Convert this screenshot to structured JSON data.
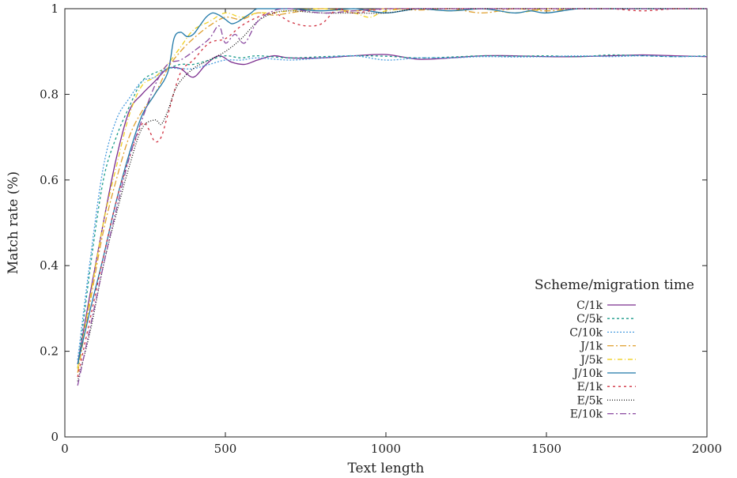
{
  "chart_data": {
    "type": "line",
    "title": "",
    "xlabel": "Text length",
    "ylabel": "Match rate (%)",
    "xlim": [
      0,
      2000
    ],
    "ylim": [
      0,
      1
    ],
    "xticks": [
      0,
      500,
      1000,
      1500,
      2000
    ],
    "yticks": [
      0,
      0.2,
      0.4,
      0.6,
      0.8,
      1
    ],
    "ytick_labels": [
      "0",
      "0.2",
      "0.4",
      "0.6",
      "0.8",
      "1"
    ],
    "grid": false,
    "legend": {
      "title": "Scheme/migration time",
      "position": "right"
    },
    "series": [
      {
        "name": "C/1k",
        "color": "#7b2d8e",
        "dash": "",
        "x": [
          40,
          80,
          120,
          160,
          200,
          240,
          280,
          320,
          360,
          400,
          440,
          480,
          520,
          560,
          600,
          650,
          700,
          800,
          900,
          1000,
          1100,
          1200,
          1300,
          1400,
          1500,
          1600,
          1700,
          1800,
          1900,
          2000
        ],
        "y": [
          0.17,
          0.34,
          0.5,
          0.65,
          0.76,
          0.8,
          0.83,
          0.86,
          0.86,
          0.84,
          0.87,
          0.89,
          0.875,
          0.87,
          0.88,
          0.89,
          0.885,
          0.885,
          0.89,
          0.893,
          0.882,
          0.885,
          0.89,
          0.89,
          0.888,
          0.888,
          0.89,
          0.892,
          0.89,
          0.888
        ]
      },
      {
        "name": "C/5k",
        "color": "#1a9a8a",
        "dash": "3,3",
        "x": [
          40,
          80,
          120,
          160,
          200,
          240,
          280,
          320,
          360,
          400,
          450,
          500,
          550,
          600,
          700,
          800,
          900,
          1000,
          1100,
          1200,
          1300,
          1400,
          1500,
          1600,
          1700,
          1800,
          1900,
          2000
        ],
        "y": [
          0.16,
          0.4,
          0.6,
          0.7,
          0.77,
          0.83,
          0.85,
          0.86,
          0.87,
          0.87,
          0.88,
          0.89,
          0.885,
          0.89,
          0.885,
          0.888,
          0.89,
          0.889,
          0.885,
          0.887,
          0.89,
          0.889,
          0.89,
          0.888,
          0.892,
          0.89,
          0.888,
          0.89
        ]
      },
      {
        "name": "C/10k",
        "color": "#4a9de0",
        "dash": "2,2",
        "x": [
          40,
          80,
          120,
          160,
          200,
          240,
          280,
          320,
          360,
          400,
          450,
          500,
          550,
          600,
          700,
          800,
          900,
          1000,
          1100,
          1200,
          1300,
          1400,
          1500,
          1600,
          1700,
          1800,
          1900,
          2000
        ],
        "y": [
          0.18,
          0.42,
          0.63,
          0.74,
          0.79,
          0.83,
          0.84,
          0.86,
          0.86,
          0.86,
          0.87,
          0.88,
          0.88,
          0.885,
          0.88,
          0.885,
          0.89,
          0.88,
          0.885,
          0.885,
          0.888,
          0.887,
          0.888,
          0.89,
          0.888,
          0.89,
          0.888,
          0.889
        ]
      },
      {
        "name": "J/1k",
        "color": "#e0a030",
        "dash": "8,3,2,3",
        "x": [
          40,
          80,
          120,
          160,
          200,
          240,
          280,
          320,
          360,
          400,
          450,
          500,
          550,
          600,
          650,
          700,
          800,
          900,
          1000,
          1100,
          1200,
          1300,
          1400,
          1500,
          1600,
          1700,
          1800,
          1900,
          2000
        ],
        "y": [
          0.15,
          0.32,
          0.48,
          0.6,
          0.7,
          0.76,
          0.8,
          0.86,
          0.9,
          0.93,
          0.96,
          0.98,
          0.975,
          0.99,
          0.985,
          0.99,
          1.0,
          0.995,
          1.0,
          0.997,
          1.0,
          0.99,
          1.0,
          0.995,
          1.0,
          1.0,
          1.0,
          1.0,
          1.0
        ]
      },
      {
        "name": "J/5k",
        "color": "#f0d020",
        "dash": "6,3,1,3",
        "x": [
          40,
          80,
          120,
          160,
          200,
          240,
          280,
          320,
          360,
          400,
          450,
          500,
          550,
          600,
          650,
          700,
          800,
          900,
          950,
          1000,
          1100,
          1200,
          1300,
          1400,
          1500,
          1600,
          1700,
          1800,
          1900,
          2000
        ],
        "y": [
          0.16,
          0.33,
          0.5,
          0.63,
          0.75,
          0.82,
          0.84,
          0.87,
          0.91,
          0.95,
          0.97,
          0.99,
          0.98,
          0.99,
          0.99,
          0.995,
          1.0,
          0.99,
          0.98,
          0.995,
          1.0,
          0.995,
          1.0,
          0.99,
          1.0,
          1.0,
          1.0,
          1.0,
          1.0,
          1.0
        ]
      },
      {
        "name": "J/10k",
        "color": "#1f78a8",
        "dash": "",
        "x": [
          40,
          80,
          120,
          160,
          200,
          240,
          280,
          320,
          340,
          360,
          380,
          400,
          420,
          440,
          460,
          480,
          500,
          520,
          540,
          560,
          580,
          600,
          650,
          700,
          800,
          900,
          1000,
          1100,
          1200,
          1300,
          1400,
          1450,
          1500,
          1600,
          1700,
          1800,
          1900,
          2000
        ],
        "y": [
          0.17,
          0.3,
          0.42,
          0.55,
          0.66,
          0.75,
          0.8,
          0.85,
          0.93,
          0.945,
          0.935,
          0.94,
          0.96,
          0.98,
          0.99,
          0.985,
          0.975,
          0.965,
          0.97,
          0.98,
          0.99,
          1.0,
          1.0,
          1.0,
          0.995,
          1.0,
          0.99,
          1.0,
          0.995,
          1.0,
          0.99,
          0.995,
          0.99,
          1.0,
          1.0,
          1.0,
          1.0,
          1.0
        ]
      },
      {
        "name": "E/1k",
        "color": "#d03040",
        "dash": "3,4",
        "x": [
          40,
          80,
          120,
          160,
          200,
          240,
          260,
          280,
          300,
          320,
          360,
          400,
          450,
          500,
          550,
          600,
          650,
          700,
          750,
          800,
          850,
          900,
          1000,
          1100,
          1200,
          1300,
          1400,
          1500,
          1600,
          1700,
          1800,
          1900,
          2000
        ],
        "y": [
          0.14,
          0.28,
          0.42,
          0.55,
          0.65,
          0.73,
          0.72,
          0.69,
          0.7,
          0.75,
          0.85,
          0.88,
          0.92,
          0.93,
          0.96,
          0.98,
          0.99,
          0.97,
          0.96,
          0.965,
          1.0,
          0.99,
          1.0,
          1.0,
          1.0,
          1.0,
          1.0,
          1.0,
          1.0,
          1.0,
          0.995,
          1.0,
          1.0
        ]
      },
      {
        "name": "E/5k",
        "color": "#111111",
        "dash": "1,2",
        "x": [
          40,
          80,
          120,
          160,
          200,
          240,
          280,
          300,
          320,
          350,
          400,
          450,
          500,
          550,
          600,
          650,
          700,
          800,
          900,
          1000,
          1100,
          1200,
          1300,
          1400,
          1500,
          1600,
          1700,
          1800,
          1900,
          2000
        ],
        "y": [
          0.13,
          0.25,
          0.4,
          0.52,
          0.63,
          0.72,
          0.74,
          0.73,
          0.76,
          0.82,
          0.86,
          0.88,
          0.9,
          0.93,
          0.97,
          0.99,
          0.995,
          0.99,
          0.99,
          0.99,
          1.0,
          1.0,
          1.0,
          1.0,
          1.0,
          1.0,
          1.0,
          1.0,
          1.0,
          1.0
        ]
      },
      {
        "name": "E/10k",
        "color": "#8a4aa0",
        "dash": "8,3,2,3",
        "x": [
          40,
          80,
          120,
          160,
          200,
          240,
          280,
          320,
          360,
          400,
          450,
          480,
          500,
          530,
          560,
          600,
          650,
          700,
          800,
          900,
          1000,
          1100,
          1200,
          1300,
          1400,
          1500,
          1600,
          1700,
          1800,
          1900,
          2000
        ],
        "y": [
          0.12,
          0.26,
          0.4,
          0.53,
          0.65,
          0.74,
          0.82,
          0.87,
          0.88,
          0.9,
          0.93,
          0.96,
          0.92,
          0.94,
          0.92,
          0.97,
          0.995,
          1.0,
          0.99,
          0.995,
          1.0,
          1.0,
          1.0,
          1.0,
          1.0,
          1.0,
          1.0,
          1.0,
          1.0,
          1.0,
          1.0
        ]
      }
    ]
  }
}
